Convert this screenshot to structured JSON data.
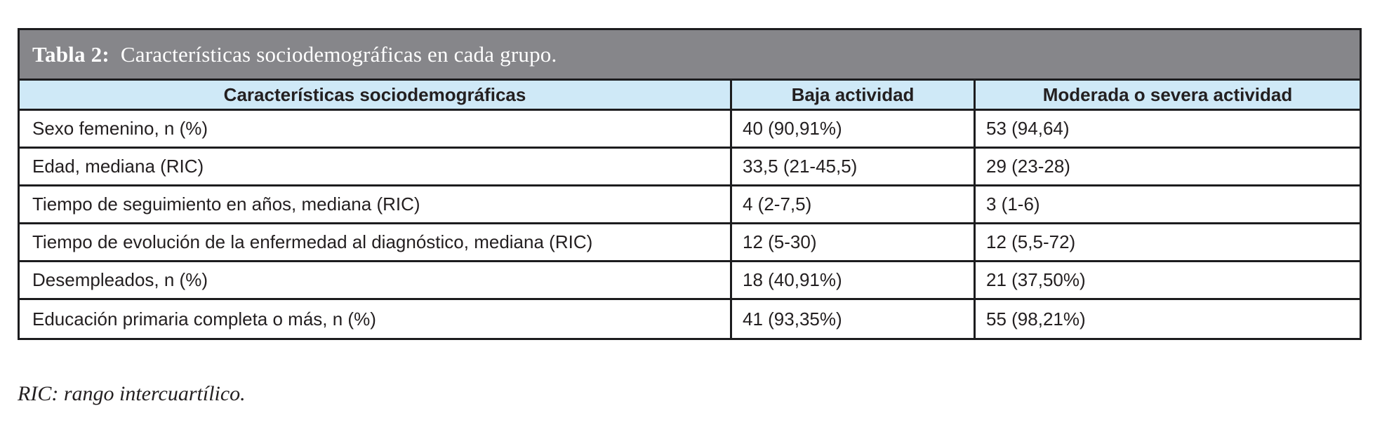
{
  "table": {
    "title": {
      "label": "Tabla 2:",
      "text": "Características sociodemográficas en cada grupo."
    },
    "colors": {
      "title_bar_bg": "#86868a",
      "header_bg": "#cfe9f7",
      "border": "#1c1c1e",
      "text": "#231f20",
      "title_text": "#ffffff"
    },
    "columns": {
      "characteristic": "Características sociodemográficas",
      "low": "Baja actividad",
      "moderate": "Moderada o severa actividad"
    },
    "rows": [
      {
        "label": "Sexo femenino, n (%)",
        "low": "40 (90,91%)",
        "moderate": "53 (94,64)"
      },
      {
        "label": "Edad, mediana (RIC)",
        "low": "33,5 (21-45,5)",
        "moderate": "29 (23-28)"
      },
      {
        "label": "Tiempo de seguimiento en años, mediana (RIC)",
        "low": "4 (2-7,5)",
        "moderate": "3 (1-6)"
      },
      {
        "label": "Tiempo de evolución de la enfermedad al diagnóstico, mediana (RIC)",
        "low": "12 (5-30)",
        "moderate": "12 (5,5-72)"
      },
      {
        "label": "Desempleados, n (%)",
        "low": "18 (40,91%)",
        "moderate": "21 (37,50%)"
      },
      {
        "label": "Educación primaria completa o más, n (%)",
        "low": "41 (93,35%)",
        "moderate": "55 (98,21%)"
      }
    ]
  },
  "footnote": "RIC: rango intercuartílico."
}
